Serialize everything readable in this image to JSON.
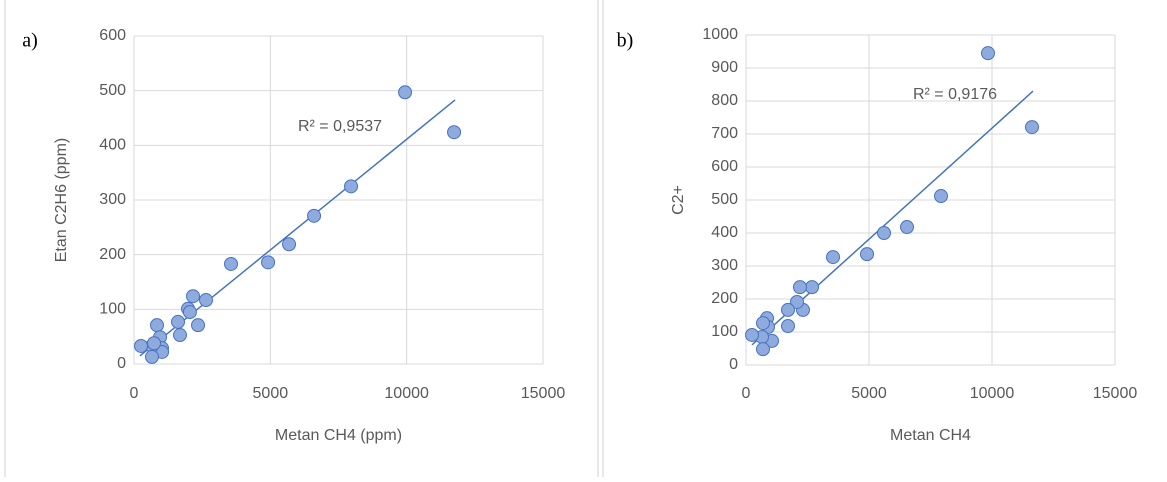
{
  "chart_data": [
    {
      "type": "scatter",
      "panel_label": "a)",
      "x_label": "Metan CH4 (ppm)",
      "y_label": "Etan C2H6 (ppm)",
      "xlim": [
        0,
        15000
      ],
      "xticks": [
        0,
        5000,
        10000,
        15000
      ],
      "ylim": [
        0,
        600
      ],
      "yticks": [
        0,
        100,
        200,
        300,
        400,
        500,
        600
      ],
      "grid": true,
      "color": "#8faadc",
      "x": [
        11738,
        9941,
        7960,
        6603,
        5686,
        4916,
        3558,
        2641,
        2164,
        2348,
        1981,
        2050,
        1614,
        1687,
        844,
        954,
        1027,
        1027,
        660,
        660,
        257,
        734
      ],
      "y": [
        424,
        497,
        325,
        271,
        219,
        186,
        183,
        117,
        124,
        71,
        101,
        95,
        77,
        53,
        71,
        49,
        29,
        22,
        33,
        13,
        33,
        38
      ],
      "trendline": {
        "x": [
          220,
          11775
        ],
        "y": [
          15,
          483
        ],
        "annotation": "R² = 0,9537"
      }
    },
    {
      "type": "scatter",
      "panel_label": "b)",
      "x_label": "Metan CH4",
      "y_label": "C2+",
      "xlim": [
        0,
        15000
      ],
      "xticks": [
        0,
        5000,
        10000,
        15000
      ],
      "ylim": [
        0,
        1000
      ],
      "yticks": [
        0,
        100,
        200,
        300,
        400,
        500,
        600,
        700,
        800,
        900,
        1000
      ],
      "grid": true,
      "color": "#8faadc",
      "x": [
        9837,
        11626,
        7927,
        6545,
        5610,
        4919,
        3537,
        2683,
        2195,
        2317,
        2073,
        1707,
        1707,
        854,
        894,
        1057,
        650,
        691,
        244,
        691
      ],
      "y": [
        945,
        721,
        512,
        418,
        400,
        336,
        327,
        236,
        236,
        167,
        191,
        167,
        118,
        142,
        115,
        73,
        85,
        48,
        91,
        127
      ],
      "trendline": {
        "x": [
          244,
          11667
        ],
        "y": [
          61,
          830
        ],
        "annotation": "R² = 0,9176"
      }
    }
  ]
}
